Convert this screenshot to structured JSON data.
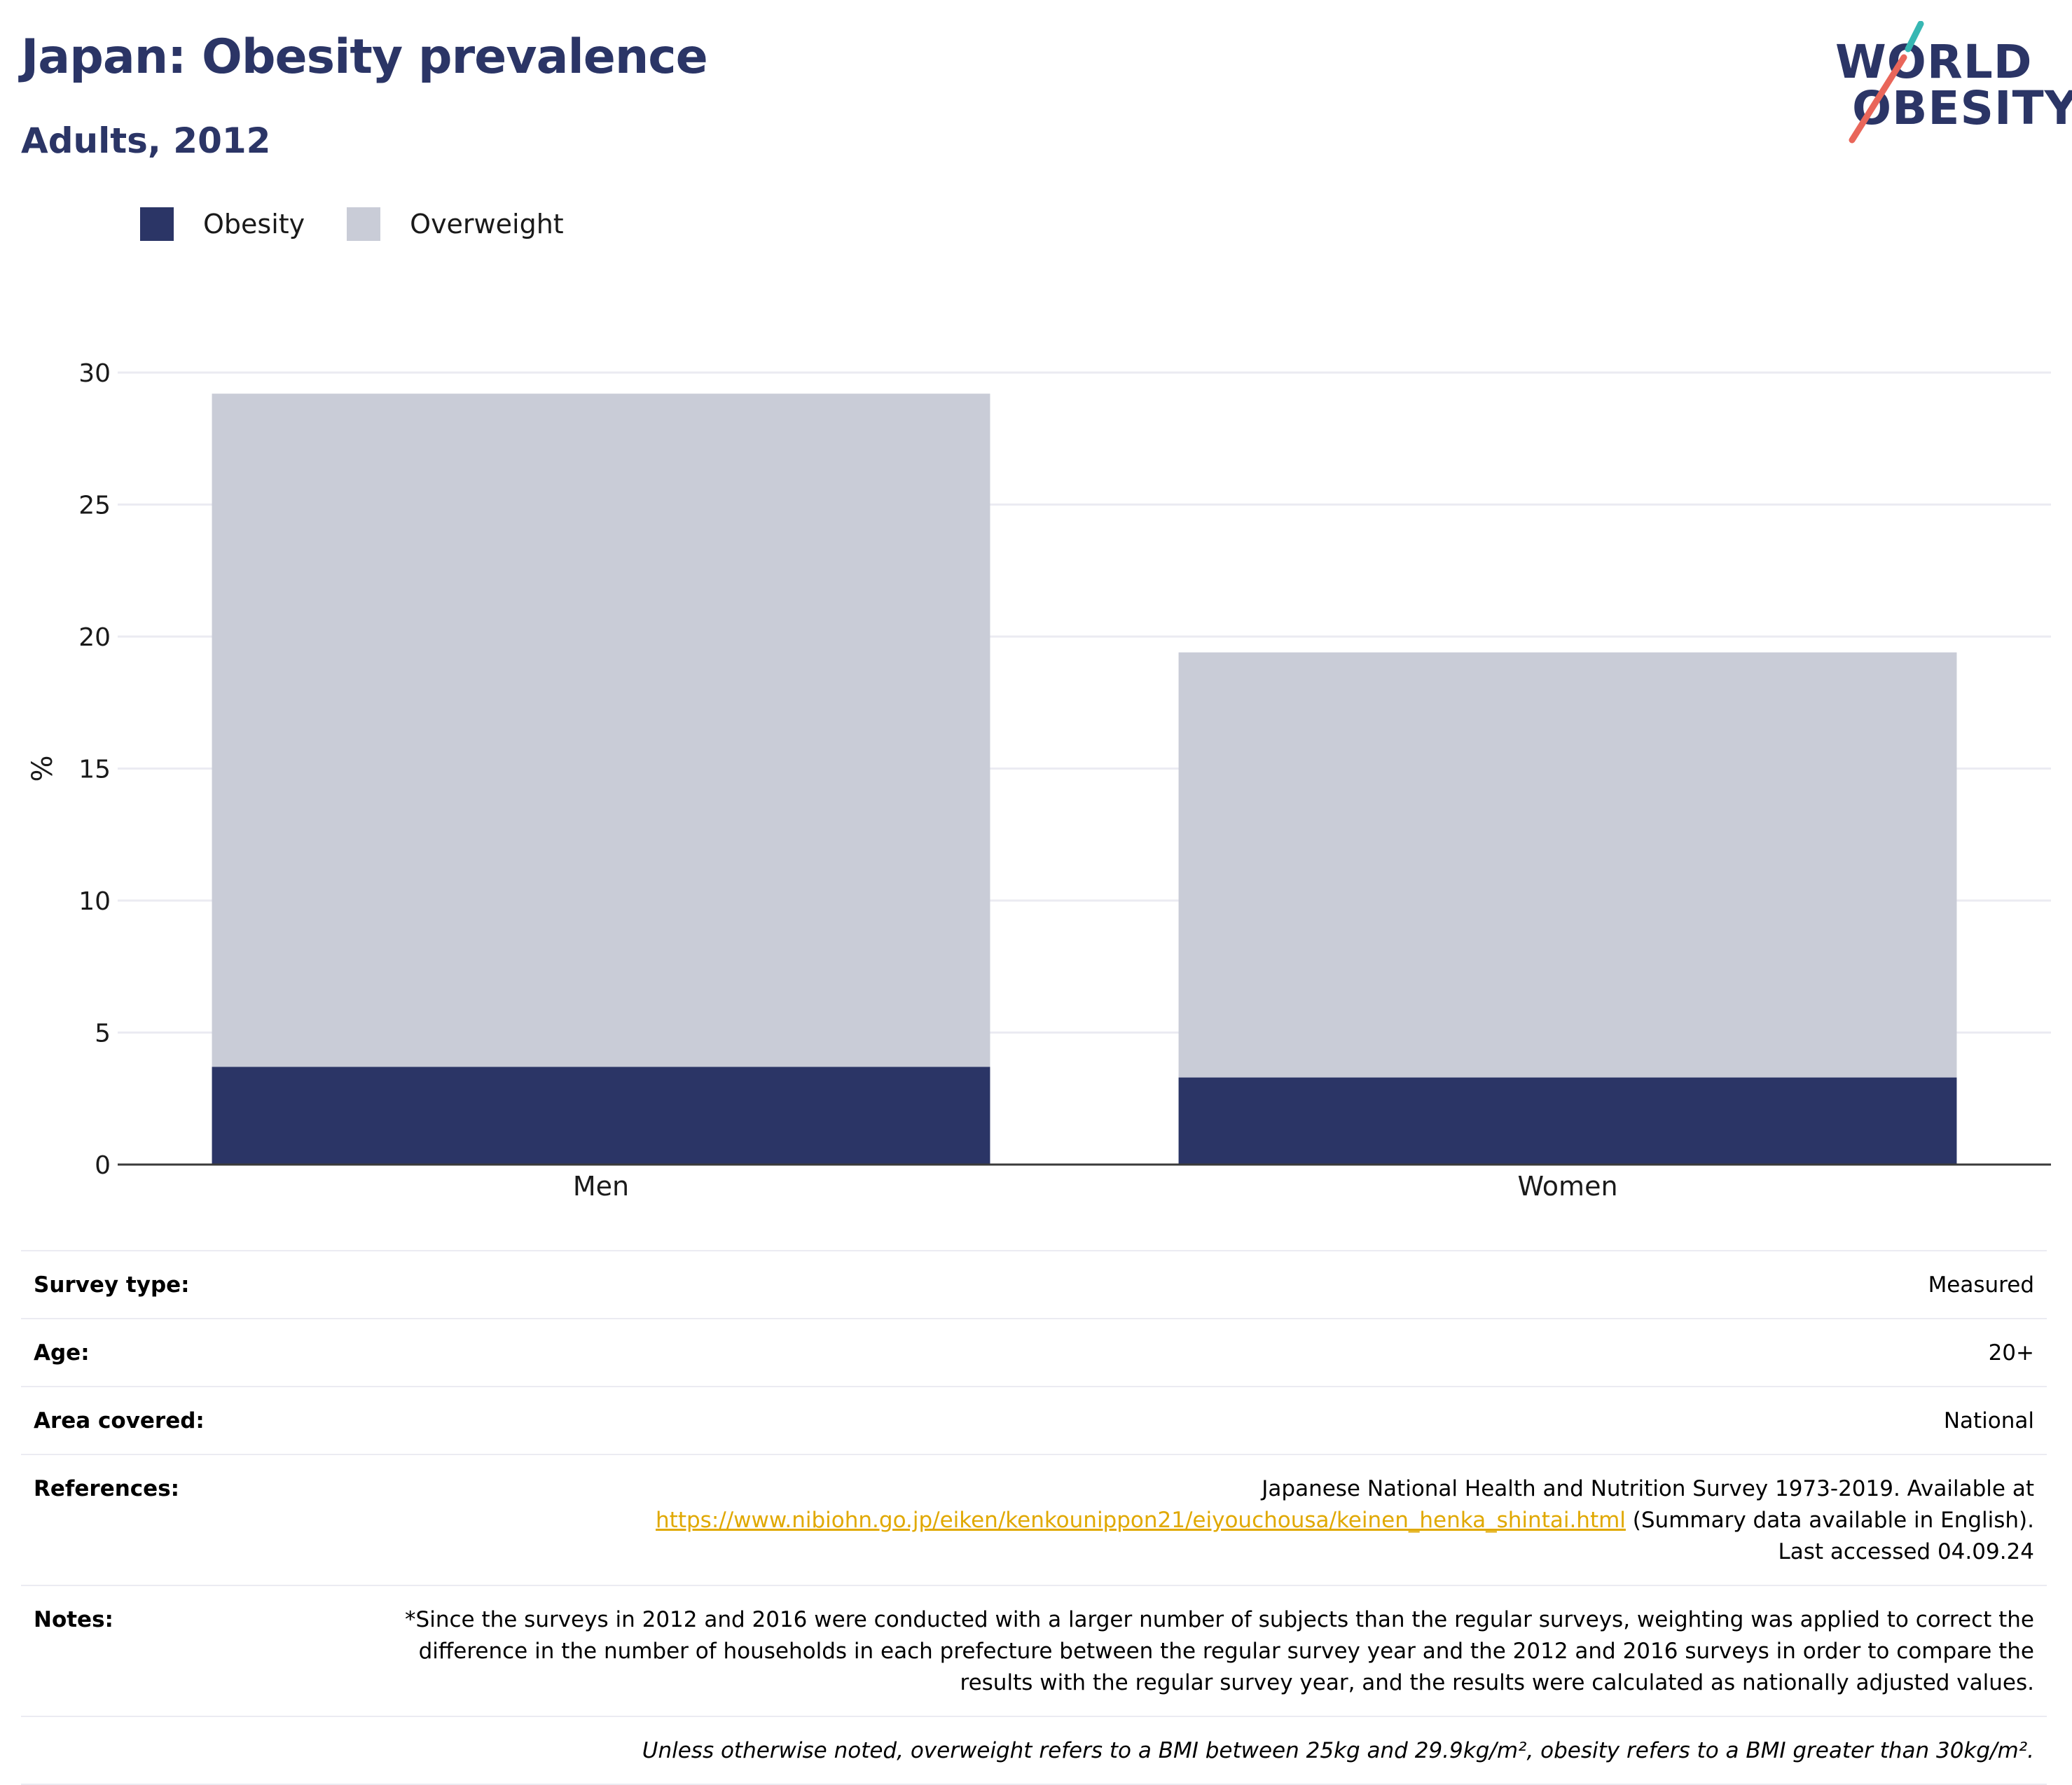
{
  "header": {
    "title": "Japan: Obesity prevalence",
    "subtitle": "Adults, 2012"
  },
  "logo": {
    "line1": "WORLD",
    "line2": "OBESITY",
    "accent_teal": "#37b7b3",
    "accent_coral": "#e9665a"
  },
  "colors": {
    "obesity": "#2b3566",
    "overweight": "#c9ccd7",
    "title": "#2b3566",
    "link": "#e0a800"
  },
  "legend": [
    {
      "label": "Obesity",
      "color": "#2b3566"
    },
    {
      "label": "Overweight",
      "color": "#c9ccd7"
    }
  ],
  "chart_data": {
    "type": "bar",
    "stacked": true,
    "categories": [
      "Men",
      "Women"
    ],
    "series": [
      {
        "name": "Obesity",
        "values": [
          3.7,
          3.3
        ],
        "color": "#2b3566"
      },
      {
        "name": "Overweight",
        "values": [
          25.5,
          16.1
        ],
        "color": "#c9ccd7"
      }
    ],
    "title": "Japan: Obesity prevalence",
    "subtitle": "Adults, 2012",
    "xlabel": "",
    "ylabel": "%",
    "ylim": [
      0,
      30
    ],
    "yticks": [
      0,
      5,
      10,
      15,
      20,
      25,
      30
    ],
    "grid": true,
    "legend_position": "top-left"
  },
  "meta": {
    "survey_type": {
      "label": "Survey type:",
      "value": "Measured"
    },
    "age": {
      "label": "Age:",
      "value": "20+"
    },
    "area": {
      "label": "Area covered:",
      "value": "National"
    },
    "references": {
      "label": "References:",
      "text_before": "Japanese National Health and Nutrition Survey 1973-2019. Available at",
      "link": "https://www.nibiohn.go.jp/eiken/kenkounippon21/eiyouchousa/keinen_henka_shintai.html",
      "text_after": "(Summary data available in English). Last accessed 04.09.24"
    },
    "notes": {
      "label": "Notes:",
      "value": "*Since the surveys in 2012 and 2016 were conducted with a larger number of subjects than the regular surveys, weighting was applied to correct the difference in the number of households in each prefecture between the regular survey year and the 2012 and 2016 surveys in order to compare the results with the regular survey year, and the results were calculated as nationally adjusted values."
    },
    "footnote": "Unless otherwise noted, overweight refers to a BMI between 25kg and 29.9kg/m², obesity refers to a BMI greater than 30kg/m²."
  }
}
